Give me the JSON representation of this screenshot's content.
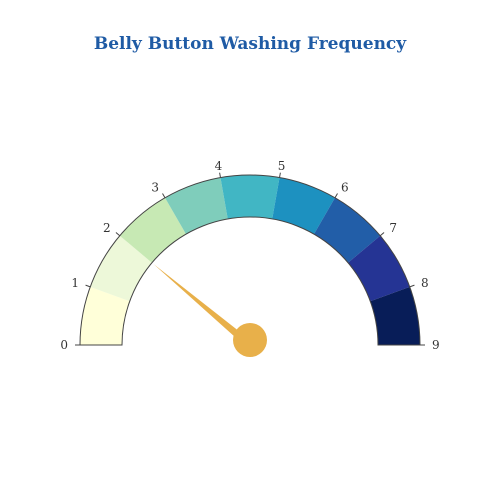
{
  "chart_data": {
    "type": "gauge",
    "title": "Belly Button Washing Frequency",
    "range": [
      0,
      9
    ],
    "value": 2,
    "tick_labels": [
      "0",
      "1",
      "2",
      "3",
      "4",
      "5",
      "6",
      "7",
      "8",
      "9"
    ],
    "segments": [
      {
        "from": 0,
        "to": 1,
        "color": "#ffffd9"
      },
      {
        "from": 1,
        "to": 2,
        "color": "#edf8d9"
      },
      {
        "from": 2,
        "to": 3,
        "color": "#c7e9b4"
      },
      {
        "from": 3,
        "to": 4,
        "color": "#7fcdbb"
      },
      {
        "from": 4,
        "to": 5,
        "color": "#41b6c4"
      },
      {
        "from": 5,
        "to": 6,
        "color": "#1d91c0"
      },
      {
        "from": 6,
        "to": 7,
        "color": "#225ea8"
      },
      {
        "from": 7,
        "to": 8,
        "color": "#253494"
      },
      {
        "from": 8,
        "to": 9,
        "color": "#081d58"
      }
    ],
    "needle_color": "#e8b04a",
    "title_color": "#1f5ba5"
  }
}
